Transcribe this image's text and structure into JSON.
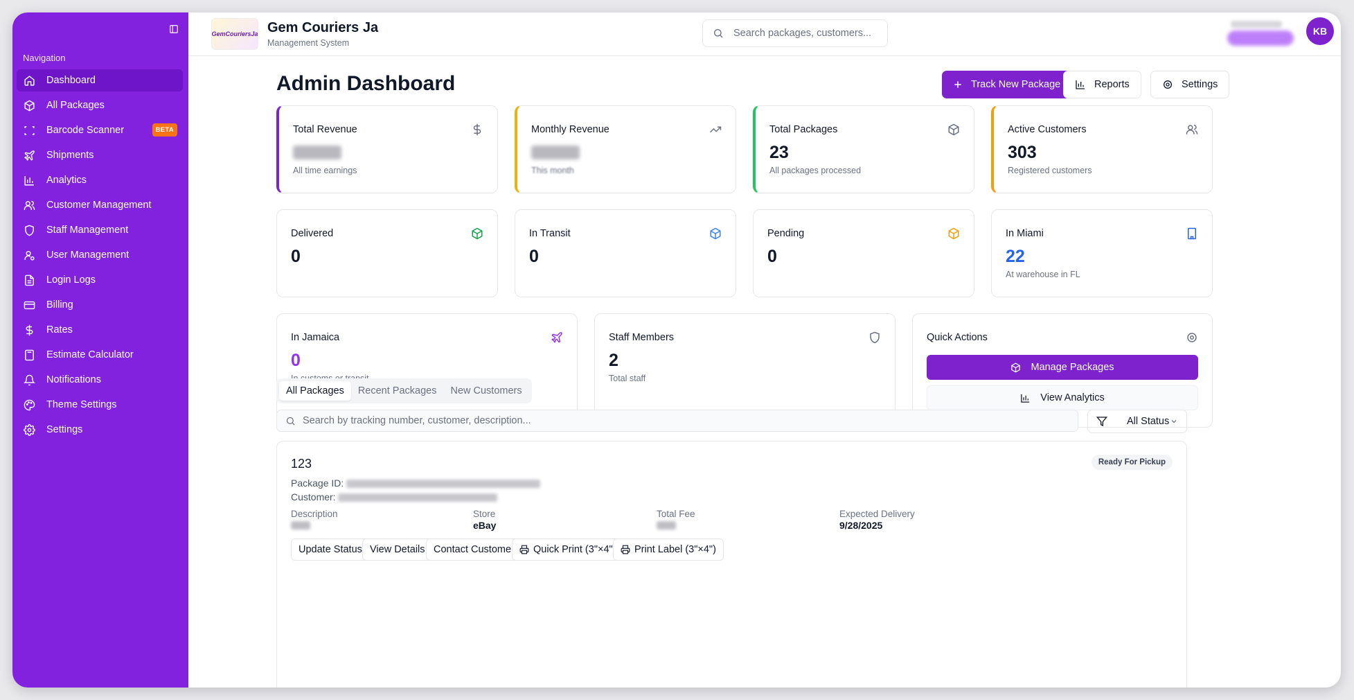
{
  "sidebar": {
    "nav_title": "Navigation",
    "items": [
      {
        "label": "Dashboard",
        "icon": "home-icon"
      },
      {
        "label": "All Packages",
        "icon": "package-icon"
      },
      {
        "label": "Barcode Scanner",
        "icon": "scan-icon",
        "badge": "BETA"
      },
      {
        "label": "Shipments",
        "icon": "plane-icon"
      },
      {
        "label": "Analytics",
        "icon": "bar-chart-icon"
      },
      {
        "label": "Customer Management",
        "icon": "users-icon"
      },
      {
        "label": "Staff Management",
        "icon": "shield-icon"
      },
      {
        "label": "User Management",
        "icon": "user-cog-icon"
      },
      {
        "label": "Login Logs",
        "icon": "file-text-icon"
      },
      {
        "label": "Billing",
        "icon": "credit-card-icon"
      },
      {
        "label": "Rates",
        "icon": "dollar-icon"
      },
      {
        "label": "Estimate Calculator",
        "icon": "calculator-icon"
      },
      {
        "label": "Notifications",
        "icon": "bell-icon"
      },
      {
        "label": "Theme Settings",
        "icon": "palette-icon"
      },
      {
        "label": "Settings",
        "icon": "gear-icon"
      }
    ],
    "active_index": 0
  },
  "header": {
    "brand_name": "Gem Couriers Ja",
    "brand_sub": "Management System",
    "logo_text": "GemCouriersJa",
    "search_placeholder": "Search packages, customers...",
    "avatar_initials": "KB"
  },
  "main": {
    "title": "Admin Dashboard",
    "actions": {
      "track": "Track New Package",
      "reports": "Reports",
      "settings": "Settings"
    },
    "stats_row1": [
      {
        "title": "Total Revenue",
        "value": "",
        "sub": "All time earnings",
        "accent": "#7e22ce",
        "icon": "dollar-icon"
      },
      {
        "title": "Monthly Revenue",
        "value": "",
        "sub": "This month",
        "accent": "#eab308",
        "icon": "trending-up-icon"
      },
      {
        "title": "Total Packages",
        "value": "23",
        "sub": "All packages processed",
        "accent": "#22c55e",
        "icon": "package-icon"
      },
      {
        "title": "Active Customers",
        "value": "303",
        "sub": "Registered customers",
        "accent": "#f59e0b",
        "icon": "users-icon"
      }
    ],
    "stats_row2": [
      {
        "title": "Delivered",
        "value": "0",
        "icon": "package-icon",
        "icon_color": "#16a34a"
      },
      {
        "title": "In Transit",
        "value": "0",
        "icon": "package-icon",
        "icon_color": "#3b82f6"
      },
      {
        "title": "Pending",
        "value": "0",
        "icon": "package-icon",
        "icon_color": "#f59e0b"
      },
      {
        "title": "In Miami",
        "value": "22",
        "sub": "At warehouse in FL",
        "icon": "building-icon",
        "icon_color": "#2563eb",
        "value_color": "#2563eb"
      }
    ],
    "jamaica": {
      "title": "In Jamaica",
      "value": "0",
      "sub": "In customs or transit",
      "value_color": "#9333ea"
    },
    "staff": {
      "title": "Staff Members",
      "value": "2",
      "sub": "Total staff"
    },
    "quick_actions": {
      "title": "Quick Actions",
      "manage": "Manage Packages",
      "analytics": "View Analytics"
    },
    "tabs": [
      "All Packages",
      "Recent Packages",
      "New Customers"
    ],
    "package_search_placeholder": "Search by tracking number, customer, description...",
    "status_filter": "All Status",
    "package": {
      "number": "123",
      "id_label": "Package ID:",
      "customer_label": "Customer:",
      "status": "Ready For Pickup",
      "description_label": "Description",
      "store_label": "Store",
      "store_value": "eBay",
      "fee_label": "Total Fee",
      "delivery_label": "Expected Delivery",
      "delivery_value": "9/28/2025",
      "buttons": {
        "update": "Update Status",
        "details": "View Details",
        "contact": "Contact Customer",
        "quick_print": "Quick Print (3\"×4\")",
        "print_label": "Print Label (3\"×4\")"
      }
    }
  },
  "colors": {
    "sidebar": "#8322de",
    "sidebar_active": "#6e14c9",
    "primary": "#7e22ce",
    "beta_badge": "#f97316"
  }
}
